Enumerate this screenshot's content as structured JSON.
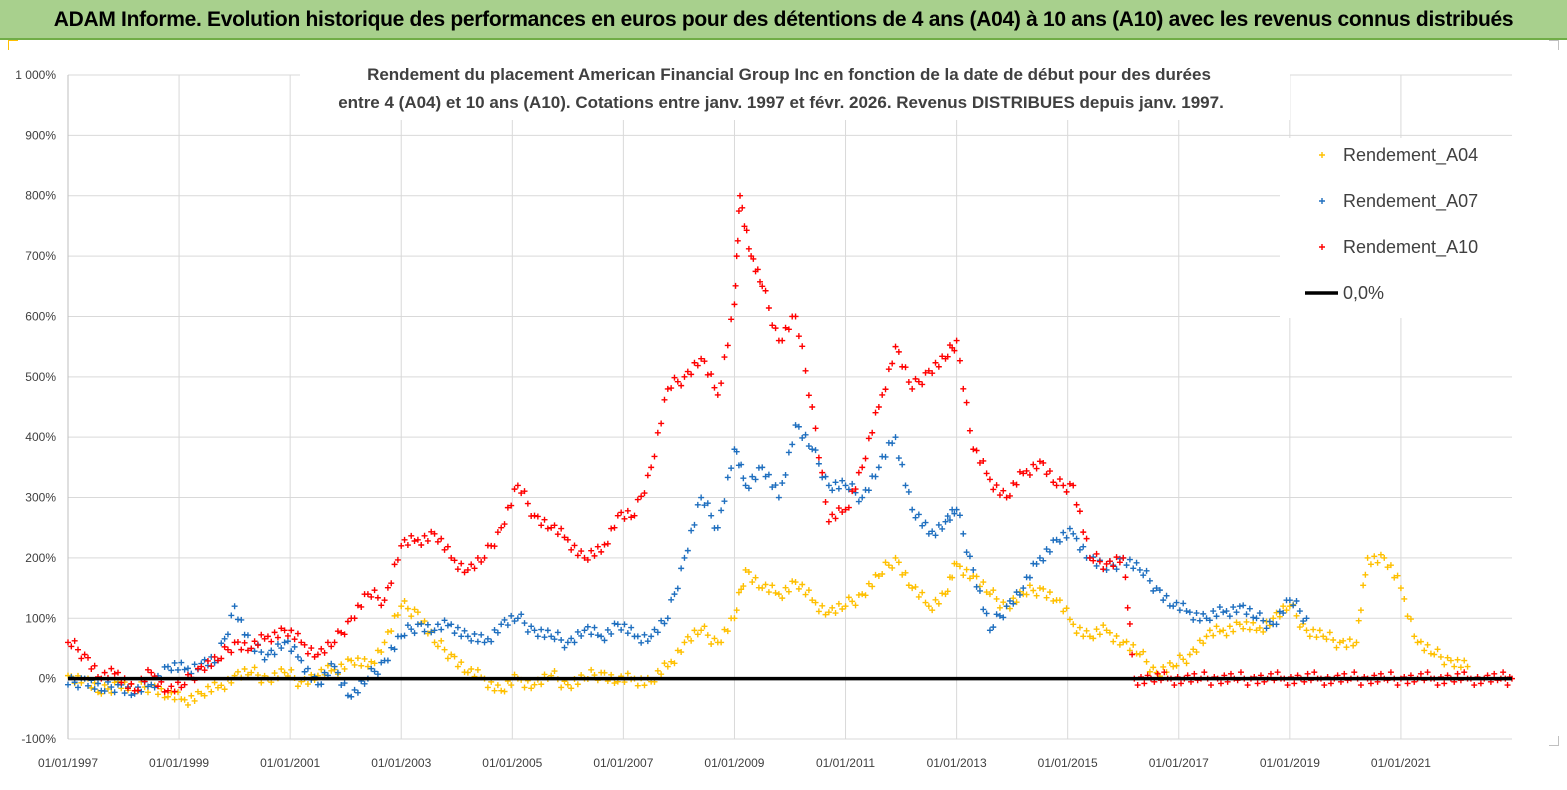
{
  "header": {
    "title": "ADAM Informe. Evolution historique des performances en euros pour des détentions de 4 ans (A04) à 10 ans (A10) avec les revenus connus distribués"
  },
  "chart_data": {
    "type": "scatter",
    "title_line1": "Rendement du placement American Financial Group Inc en fonction de la date de début pour des durées",
    "title_line2": "entre 4 (A04) et 10 ans (A10).  Cotations entre janv. 1997 et févr. 2026. Revenus DISTRIBUES depuis janv. 1997.",
    "xlabel": "",
    "ylabel": "",
    "ylim": [
      -100,
      1000
    ],
    "xlim": [
      1997.0,
      2023.0
    ],
    "y_ticks": [
      {
        "value": 1000,
        "label": "1 000%"
      },
      {
        "value": 900,
        "label": "900%"
      },
      {
        "value": 800,
        "label": "800%"
      },
      {
        "value": 700,
        "label": "700%"
      },
      {
        "value": 600,
        "label": "600%"
      },
      {
        "value": 500,
        "label": "500%"
      },
      {
        "value": 400,
        "label": "400%"
      },
      {
        "value": 300,
        "label": "300%"
      },
      {
        "value": 200,
        "label": "200%"
      },
      {
        "value": 100,
        "label": "100%"
      },
      {
        "value": 0,
        "label": "0%"
      },
      {
        "value": -100,
        "label": "-100%"
      }
    ],
    "x_ticks": [
      {
        "value": 1997,
        "label": "01/01/1997"
      },
      {
        "value": 1999,
        "label": "01/01/1999"
      },
      {
        "value": 2001,
        "label": "01/01/2001"
      },
      {
        "value": 2003,
        "label": "01/01/2003"
      },
      {
        "value": 2005,
        "label": "01/01/2005"
      },
      {
        "value": 2007,
        "label": "01/01/2007"
      },
      {
        "value": 2009,
        "label": "01/01/2009"
      },
      {
        "value": 2011,
        "label": "01/01/2011"
      },
      {
        "value": 2013,
        "label": "01/01/2013"
      },
      {
        "value": 2015,
        "label": "01/01/2015"
      },
      {
        "value": 2017,
        "label": "01/01/2017"
      },
      {
        "value": 2019,
        "label": "01/01/2019"
      },
      {
        "value": 2021,
        "label": "01/01/2021"
      }
    ],
    "grid": true,
    "legend_position": "top-right",
    "series": [
      {
        "name": "Rendement_A04",
        "color": "#ffc000",
        "marker": "+",
        "x": [
          1997.0,
          1997.3,
          1997.6,
          1997.9,
          1998.2,
          1998.5,
          1998.8,
          1999.1,
          1999.4,
          1999.7,
          2000.0,
          2000.3,
          2000.6,
          2000.9,
          2001.2,
          2001.5,
          2001.8,
          2002.1,
          2002.4,
          2002.7,
          2003.0,
          2003.3,
          2003.6,
          2003.9,
          2004.2,
          2004.5,
          2004.8,
          2005.1,
          2005.4,
          2005.7,
          2006.0,
          2006.3,
          2006.6,
          2006.9,
          2007.2,
          2007.5,
          2007.8,
          2008.1,
          2008.4,
          2008.7,
          2009.0,
          2009.2,
          2009.5,
          2009.8,
          2010.1,
          2010.4,
          2010.7,
          2011.0,
          2011.3,
          2011.6,
          2011.9,
          2012.2,
          2012.5,
          2012.8,
          2013.0,
          2013.3,
          2013.6,
          2013.9,
          2014.2,
          2014.5,
          2014.8,
          2015.1,
          2015.4,
          2015.7,
          2016.0,
          2016.3,
          2016.6,
          2016.9,
          2017.2,
          2017.5,
          2017.8,
          2018.1,
          2018.4,
          2018.7,
          2019.0,
          2019.3,
          2019.6,
          2019.9,
          2020.2,
          2020.4,
          2020.7,
          2021.0,
          2021.3,
          2021.6,
          2021.9,
          2022.2
        ],
        "y": [
          5,
          0,
          -25,
          -5,
          -20,
          -10,
          -30,
          -35,
          -25,
          -15,
          5,
          10,
          0,
          10,
          -5,
          5,
          15,
          30,
          20,
          60,
          120,
          110,
          60,
          40,
          10,
          0,
          -20,
          0,
          -10,
          5,
          -10,
          0,
          10,
          -5,
          0,
          -5,
          20,
          60,
          80,
          60,
          100,
          180,
          150,
          140,
          160,
          130,
          110,
          120,
          140,
          170,
          200,
          150,
          120,
          140,
          190,
          170,
          140,
          120,
          140,
          150,
          130,
          90,
          70,
          80,
          60,
          40,
          10,
          20,
          40,
          70,
          80,
          90,
          80,
          100,
          120,
          80,
          70,
          60,
          60,
          200,
          200,
          150,
          60,
          40,
          30,
          20
        ]
      },
      {
        "name": "Rendement_A07",
        "color": "#1f6fbf",
        "marker": "+",
        "x": [
          1997.0,
          1997.3,
          1997.6,
          1997.9,
          1998.2,
          1998.5,
          1998.8,
          1999.1,
          1999.4,
          1999.7,
          2000.0,
          2000.3,
          2000.6,
          2000.9,
          2001.2,
          2001.5,
          2001.8,
          2002.1,
          2002.4,
          2002.7,
          2003.0,
          2003.3,
          2003.6,
          2003.9,
          2004.2,
          2004.5,
          2004.8,
          2005.1,
          2005.4,
          2005.7,
          2006.0,
          2006.3,
          2006.6,
          2006.9,
          2007.2,
          2007.5,
          2007.8,
          2008.1,
          2008.4,
          2008.7,
          2009.0,
          2009.2,
          2009.5,
          2009.8,
          2010.1,
          2010.4,
          2010.7,
          2011.0,
          2011.3,
          2011.6,
          2011.9,
          2012.2,
          2012.5,
          2012.8,
          2013.0,
          2013.3,
          2013.6,
          2013.9,
          2014.2,
          2014.5,
          2014.8,
          2015.1,
          2015.4,
          2015.7,
          2016.0,
          2016.3,
          2016.6,
          2016.9,
          2017.2,
          2017.5,
          2017.8,
          2018.1,
          2018.4,
          2018.7,
          2019.0,
          2019.3
        ],
        "y": [
          -10,
          0,
          -20,
          -10,
          -25,
          -10,
          20,
          15,
          25,
          30,
          120,
          50,
          40,
          60,
          30,
          -10,
          20,
          -30,
          0,
          30,
          70,
          90,
          80,
          90,
          70,
          60,
          90,
          100,
          80,
          70,
          60,
          80,
          70,
          90,
          70,
          70,
          100,
          200,
          300,
          250,
          380,
          320,
          350,
          300,
          420,
          380,
          320,
          320,
          300,
          350,
          400,
          280,
          240,
          260,
          280,
          180,
          80,
          120,
          150,
          200,
          230,
          240,
          200,
          180,
          200,
          180,
          150,
          120,
          110,
          100,
          110,
          120,
          100,
          90,
          130,
          100
        ]
      },
      {
        "name": "Rendement_A10",
        "color": "#ff0000",
        "marker": "+",
        "x": [
          1997.0,
          1997.3,
          1997.6,
          1997.9,
          1998.2,
          1998.5,
          1998.8,
          1999.1,
          1999.4,
          1999.7,
          2000.0,
          2000.3,
          2000.6,
          2000.9,
          2001.2,
          2001.5,
          2001.8,
          2002.1,
          2002.4,
          2002.7,
          2003.0,
          2003.3,
          2003.6,
          2003.9,
          2004.2,
          2004.5,
          2004.8,
          2005.1,
          2005.4,
          2005.7,
          2006.0,
          2006.3,
          2006.6,
          2006.9,
          2007.2,
          2007.5,
          2007.8,
          2008.1,
          2008.4,
          2008.7,
          2009.0,
          2009.1,
          2009.3,
          2009.5,
          2009.8,
          2010.1,
          2010.4,
          2010.7,
          2011.0,
          2011.3,
          2011.6,
          2011.9,
          2012.2,
          2012.5,
          2012.8,
          2013.0,
          2013.3,
          2013.6,
          2013.9,
          2014.2,
          2014.5,
          2014.8,
          2015.1,
          2015.4,
          2015.7,
          2016.0,
          2016.2,
          2016.5,
          2016.8,
          2017.1,
          2017.4,
          2017.7,
          2018.0,
          2018.3,
          2018.6,
          2018.9,
          2019.2,
          2019.5,
          2019.8,
          2020.1,
          2020.4,
          2020.7,
          2021.0,
          2021.3,
          2021.6,
          2021.9,
          2022.2,
          2022.5,
          2022.8,
          2023.0
        ],
        "y": [
          60,
          40,
          0,
          10,
          -20,
          10,
          -20,
          -10,
          20,
          30,
          60,
          50,
          70,
          80,
          60,
          40,
          60,
          100,
          140,
          130,
          220,
          230,
          240,
          200,
          180,
          200,
          250,
          320,
          270,
          250,
          230,
          200,
          210,
          270,
          270,
          350,
          480,
          500,
          530,
          470,
          620,
          800,
          700,
          650,
          560,
          600,
          450,
          260,
          280,
          350,
          450,
          550,
          480,
          510,
          530,
          560,
          380,
          330,
          300,
          340,
          360,
          320,
          320,
          200,
          190,
          200,
          0,
          0,
          0,
          0,
          0,
          0,
          0,
          0,
          0,
          0,
          0,
          0,
          0,
          0,
          0,
          0,
          0,
          0,
          0,
          0,
          0,
          0,
          0,
          0
        ]
      },
      {
        "name": "0,0%",
        "color": "#000000",
        "marker": "line",
        "x": [
          1997.0,
          2023.0
        ],
        "y": [
          0,
          0
        ]
      }
    ]
  }
}
